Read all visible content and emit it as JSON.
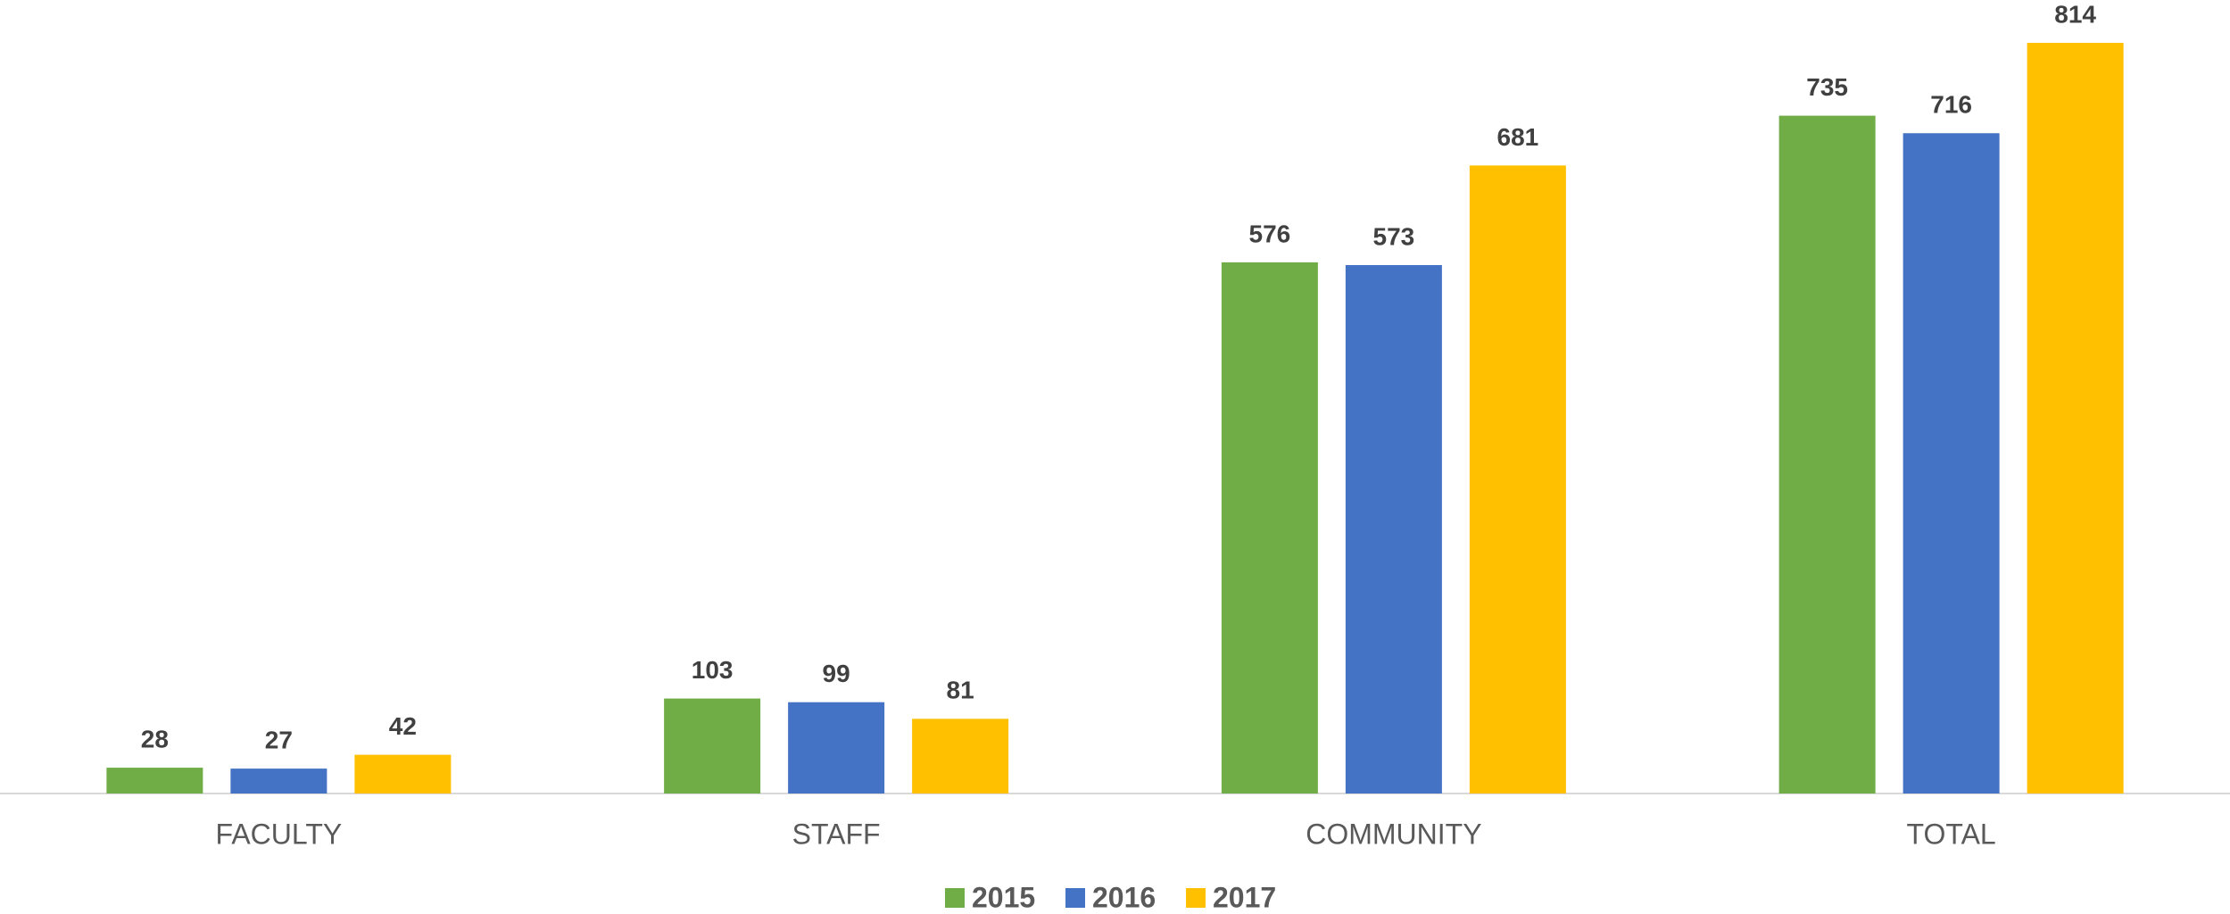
{
  "chart_data": {
    "type": "bar",
    "categories": [
      "FACULTY",
      "STAFF",
      "COMMUNITY",
      "TOTAL"
    ],
    "series": [
      {
        "name": "2015",
        "color": "#70ad47",
        "values": [
          28,
          103,
          576,
          735
        ]
      },
      {
        "name": "2016",
        "color": "#4472c4",
        "values": [
          27,
          99,
          573,
          716
        ]
      },
      {
        "name": "2017",
        "color": "#ffc000",
        "values": [
          42,
          81,
          681,
          814
        ]
      }
    ],
    "legend": "bottom"
  }
}
